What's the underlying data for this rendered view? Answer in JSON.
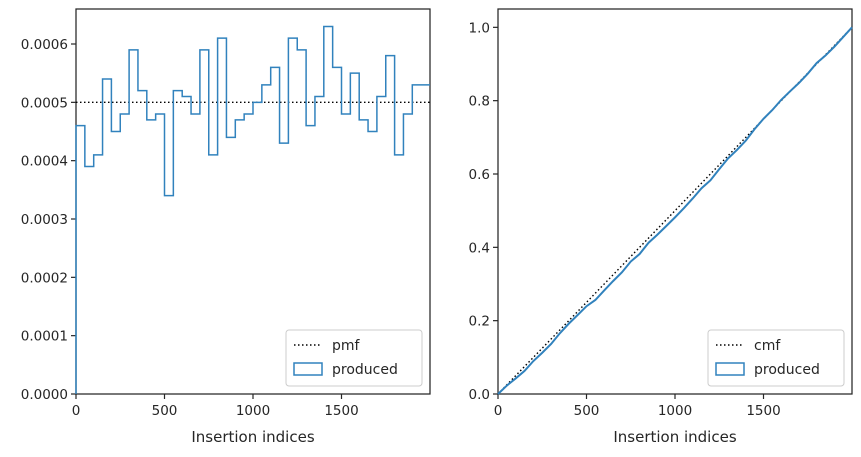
{
  "chart_data": [
    {
      "type": "line",
      "step": true,
      "xlabel": "Insertion indices",
      "ylabel": "",
      "xlim": [
        0,
        2000
      ],
      "ylim": [
        0,
        0.00066
      ],
      "xticks": [
        0,
        500,
        1000,
        1500
      ],
      "xtick_labels": [
        "0",
        "500",
        "1000",
        "1500"
      ],
      "yticks": [
        0,
        0.0001,
        0.0002,
        0.0003,
        0.0004,
        0.0005,
        0.0006
      ],
      "ytick_labels": [
        "0.0000",
        "0.0001",
        "0.0002",
        "0.0003",
        "0.0004",
        "0.0005",
        "0.0006"
      ],
      "legend": {
        "position": "lower-right",
        "entries": [
          "pmf",
          "produced"
        ]
      },
      "reference": {
        "name": "pmf",
        "value": 0.0005,
        "style": "dotted",
        "color": "#000000"
      },
      "histogram": {
        "name": "produced",
        "color": "#3182bd",
        "bin_width": 50,
        "bin_start": 0,
        "values": [
          0.00046,
          0.00039,
          0.00041,
          0.00054,
          0.00045,
          0.00048,
          0.00059,
          0.00052,
          0.00047,
          0.00048,
          0.00034,
          0.00052,
          0.00051,
          0.00048,
          0.00059,
          0.00041,
          0.00061,
          0.00044,
          0.00047,
          0.00048,
          0.0005,
          0.00053,
          0.00056,
          0.00043,
          0.00061,
          0.00059,
          0.00046,
          0.00051,
          0.00063,
          0.00056,
          0.00048,
          0.00055,
          0.00047,
          0.00045,
          0.00051,
          0.00058,
          0.00041,
          0.00048,
          0.00053,
          0.00053
        ]
      }
    },
    {
      "type": "line",
      "xlabel": "Insertion indices",
      "ylabel": "",
      "xlim": [
        0,
        2000
      ],
      "ylim": [
        0,
        1.05
      ],
      "xticks": [
        0,
        500,
        1000,
        1500
      ],
      "xtick_labels": [
        "0",
        "500",
        "1000",
        "1500"
      ],
      "yticks": [
        0,
        0.2,
        0.4,
        0.6,
        0.8,
        1.0
      ],
      "ytick_labels": [
        "0.0",
        "0.2",
        "0.4",
        "0.6",
        "0.8",
        "1.0"
      ],
      "legend": {
        "position": "lower-right",
        "entries": [
          "cmf",
          "produced"
        ]
      },
      "reference": {
        "name": "cmf",
        "x": [
          0,
          2000
        ],
        "y": [
          0,
          1.0
        ],
        "style": "dotted",
        "color": "#000000"
      },
      "cumulative": {
        "name": "produced",
        "color": "#3182bd"
      }
    }
  ]
}
